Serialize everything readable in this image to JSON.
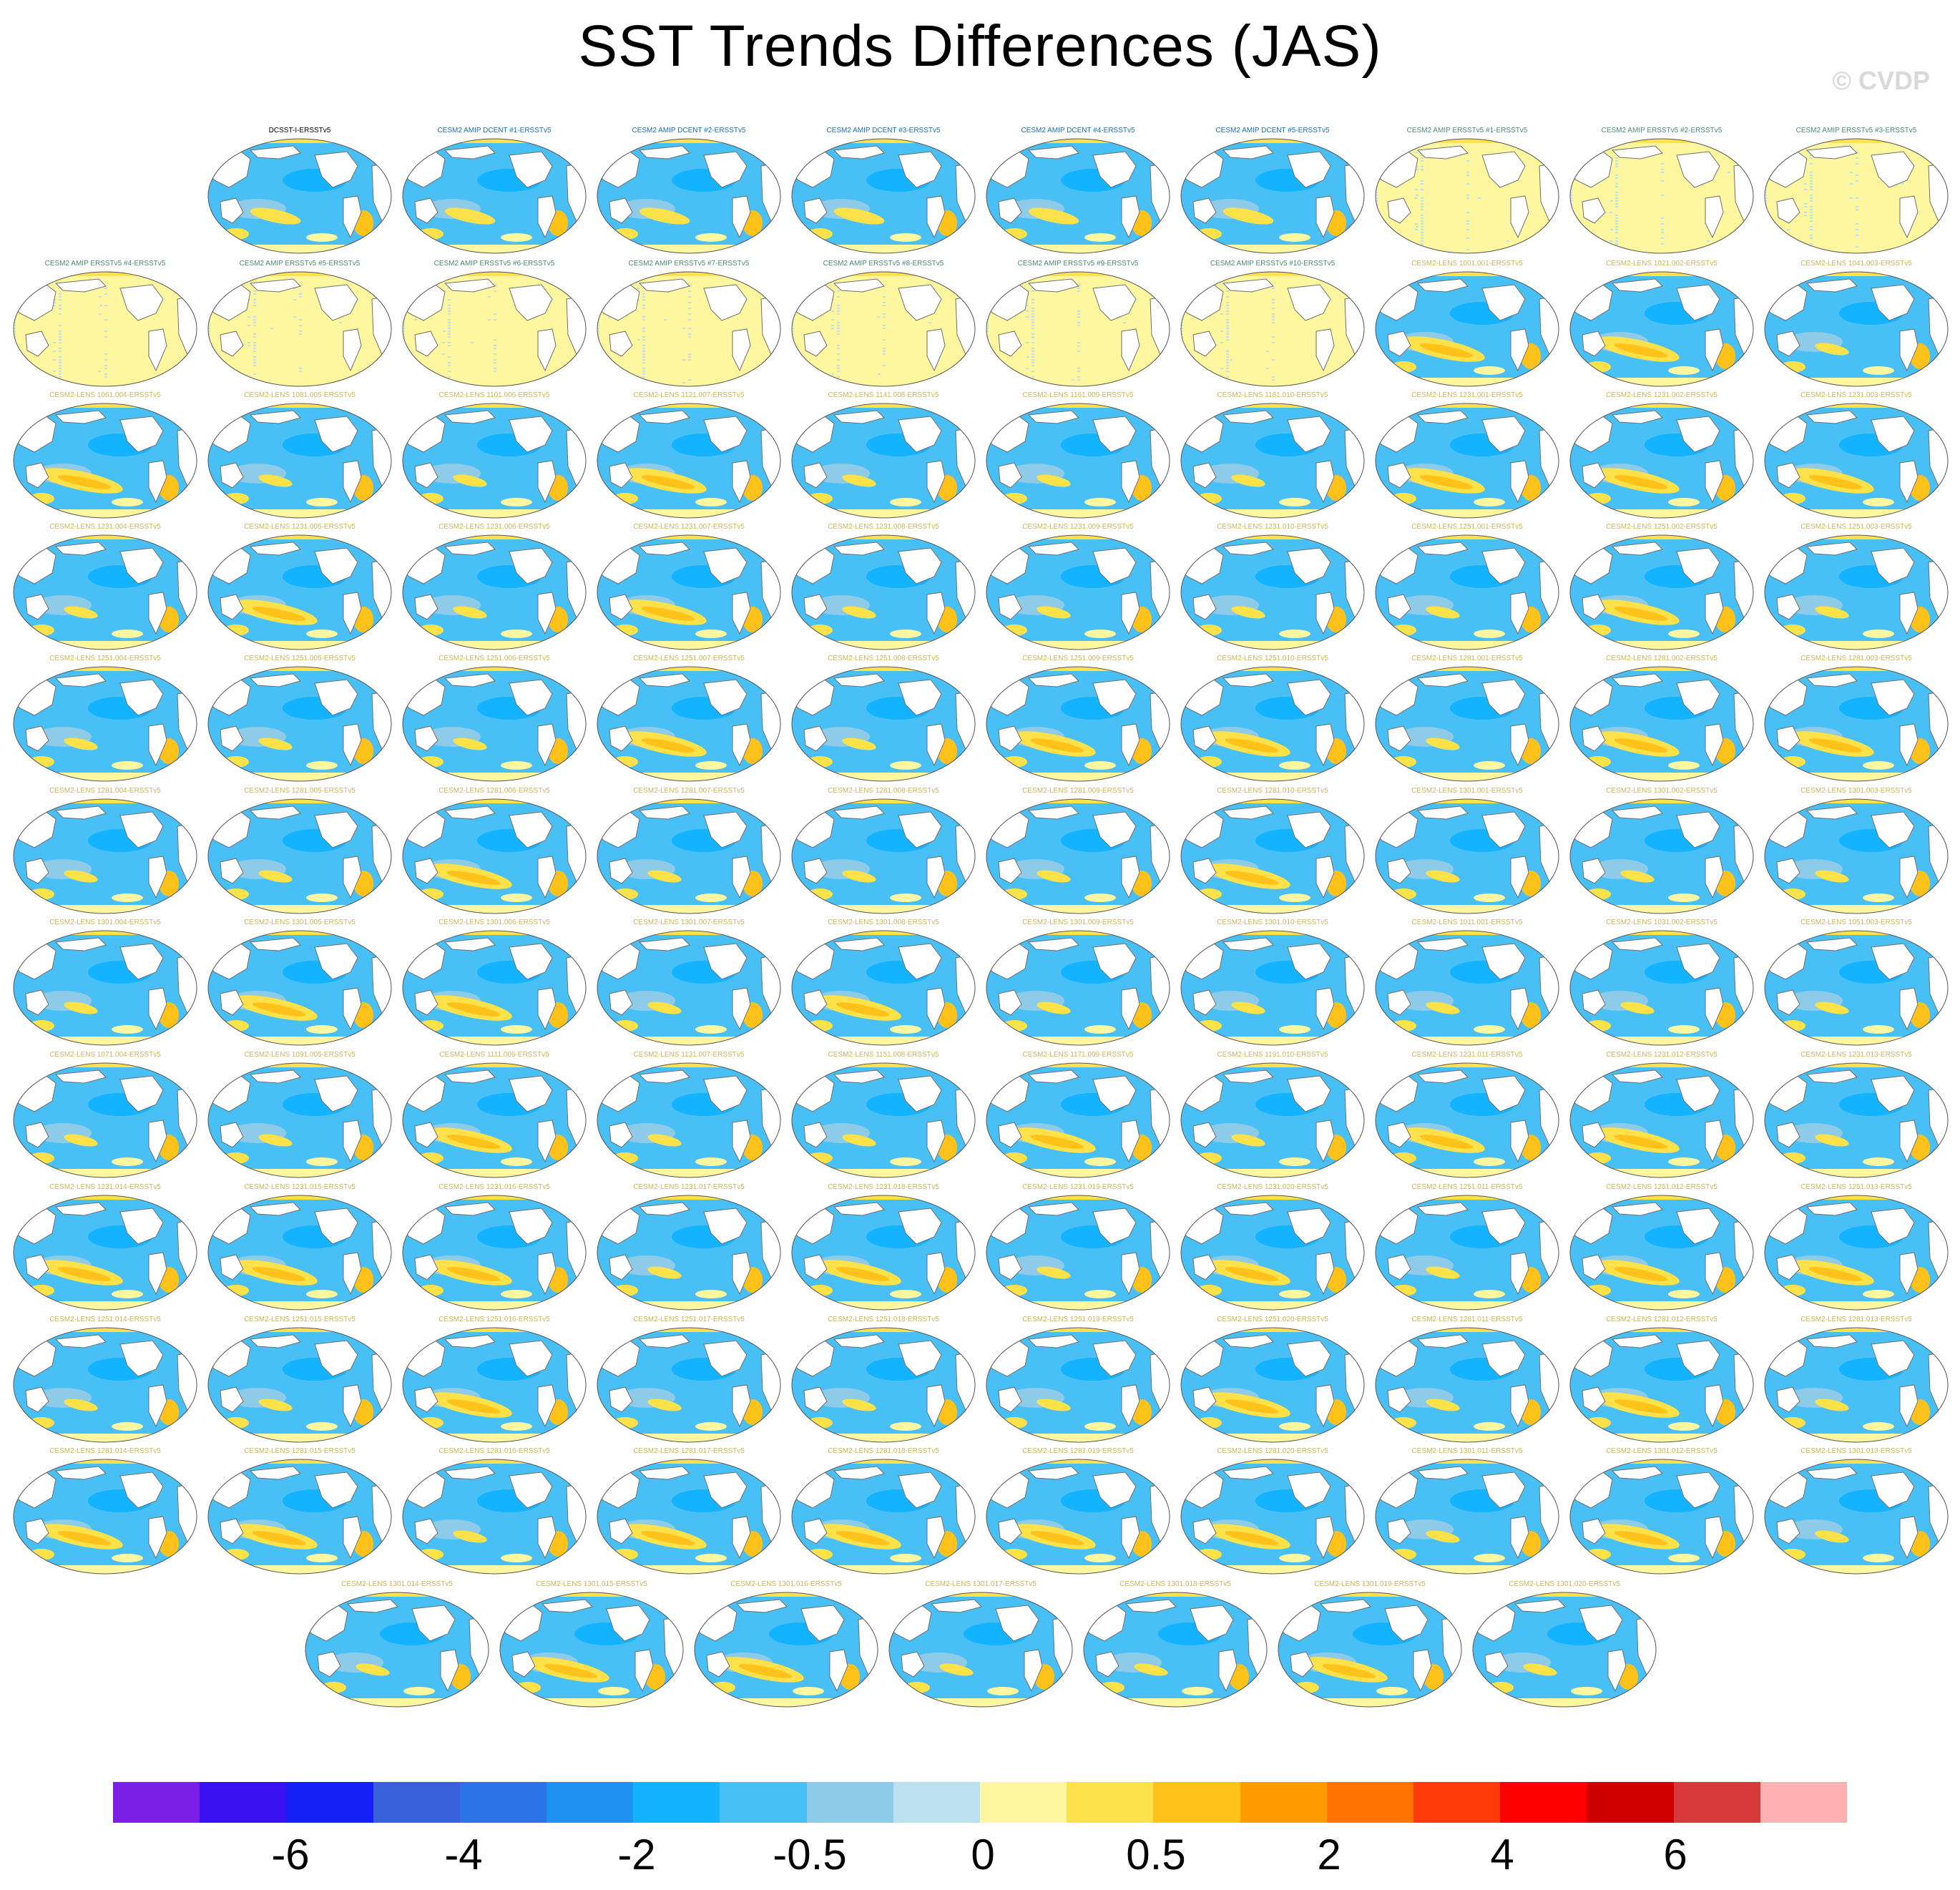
{
  "title": "SST Trends Differences (JAS)",
  "watermark": "© CVDP",
  "panels": [
    {
      "label": "DCSST-I-ERSSTv5",
      "label_color": "#000000",
      "pattern": "obs"
    },
    {
      "label": "CESM2 AMIP DCENT #1-ERSSTv5",
      "label_color": "#1a6fa8",
      "pattern": "obs"
    },
    {
      "label": "CESM2 AMIP DCENT #2-ERSSTv5",
      "label_color": "#1a6fa8",
      "pattern": "obs"
    },
    {
      "label": "CESM2 AMIP DCENT #3-ERSSTv5",
      "label_color": "#1a6fa8",
      "pattern": "obs"
    },
    {
      "label": "CESM2 AMIP DCENT #4-ERSSTv5",
      "label_color": "#1a6fa8",
      "pattern": "obs"
    },
    {
      "label": "CESM2 AMIP DCENT #5-ERSSTv5",
      "label_color": "#1a6fa8",
      "pattern": "obs"
    },
    {
      "label": "CESM2 AMIP ERSSTv5 #1-ERSSTv5",
      "label_color": "#4a8a70",
      "pattern": "noise"
    },
    {
      "label": "CESM2 AMIP ERSSTv5 #2-ERSSTv5",
      "label_color": "#4a8a70",
      "pattern": "noise"
    },
    {
      "label": "CESM2 AMIP ERSSTv5 #3-ERSSTv5",
      "label_color": "#4a8a70",
      "pattern": "noise"
    },
    {
      "label": "CESM2 AMIP ERSSTv5 #4-ERSSTv5",
      "label_color": "#4a8a70",
      "pattern": "noise"
    },
    {
      "label": "CESM2 AMIP ERSSTv5 #5-ERSSTv5",
      "label_color": "#4a8a70",
      "pattern": "noise"
    },
    {
      "label": "CESM2 AMIP ERSSTv5 #6-ERSSTv5",
      "label_color": "#4a8a70",
      "pattern": "noise"
    },
    {
      "label": "CESM2 AMIP ERSSTv5 #7-ERSSTv5",
      "label_color": "#4a8a70",
      "pattern": "noise"
    },
    {
      "label": "CESM2 AMIP ERSSTv5 #8-ERSSTv5",
      "label_color": "#4a8a70",
      "pattern": "noise"
    },
    {
      "label": "CESM2 AMIP ERSSTv5 #9-ERSSTv5",
      "label_color": "#4a8a70",
      "pattern": "noise"
    },
    {
      "label": "CESM2 AMIP ERSSTv5 #10-ERSSTv5",
      "label_color": "#4a8a70",
      "pattern": "noise"
    },
    {
      "label": "CESM2-LENS 1001.001-ERSSTv5",
      "label_color": "#c9b45a",
      "pattern": "warm"
    },
    {
      "label": "CESM2-LENS 1021.002-ERSSTv5",
      "label_color": "#c9b45a",
      "pattern": "warm"
    },
    {
      "label": "CESM2-LENS 1041.003-ERSSTv5",
      "label_color": "#c9b45a",
      "pattern": "cool"
    },
    {
      "label": "CESM2-LENS 1061.004-ERSSTv5",
      "label_color": "#c9b45a",
      "pattern": "warm"
    },
    {
      "label": "CESM2-LENS 1081.005-ERSSTv5",
      "label_color": "#c9b45a",
      "pattern": "cool"
    },
    {
      "label": "CESM2-LENS 1101.006-ERSSTv5",
      "label_color": "#c9b45a",
      "pattern": "cool"
    },
    {
      "label": "CESM2-LENS 1121.007-ERSSTv5",
      "label_color": "#c9b45a",
      "pattern": "warm"
    },
    {
      "label": "CESM2-LENS 1141.008-ERSSTv5",
      "label_color": "#c9b45a",
      "pattern": "cool"
    },
    {
      "label": "CESM2-LENS 1161.009-ERSSTv5",
      "label_color": "#c9b45a",
      "pattern": "cool"
    },
    {
      "label": "CESM2-LENS 1181.010-ERSSTv5",
      "label_color": "#c9b45a",
      "pattern": "cool"
    },
    {
      "label": "CESM2-LENS 1231.001-ERSSTv5",
      "label_color": "#c9b45a",
      "pattern": "warm"
    },
    {
      "label": "CESM2-LENS 1231.002-ERSSTv5",
      "label_color": "#c9b45a",
      "pattern": "warm"
    },
    {
      "label": "CESM2-LENS 1231.003-ERSSTv5",
      "label_color": "#c9b45a",
      "pattern": "warm"
    },
    {
      "label": "CESM2-LENS 1231.004-ERSSTv5",
      "label_color": "#c9b45a",
      "pattern": "cool"
    },
    {
      "label": "CESM2-LENS 1231.005-ERSSTv5",
      "label_color": "#c9b45a",
      "pattern": "warm"
    },
    {
      "label": "CESM2-LENS 1231.006-ERSSTv5",
      "label_color": "#c9b45a",
      "pattern": "cool"
    },
    {
      "label": "CESM2-LENS 1231.007-ERSSTv5",
      "label_color": "#c9b45a",
      "pattern": "warm"
    },
    {
      "label": "CESM2-LENS 1231.008-ERSSTv5",
      "label_color": "#c9b45a",
      "pattern": "cool"
    },
    {
      "label": "CESM2-LENS 1231.009-ERSSTv5",
      "label_color": "#c9b45a",
      "pattern": "cool"
    },
    {
      "label": "CESM2-LENS 1231.010-ERSSTv5",
      "label_color": "#c9b45a",
      "pattern": "cool"
    },
    {
      "label": "CESM2-LENS 1251.001-ERSSTv5",
      "label_color": "#c9b45a",
      "pattern": "cool"
    },
    {
      "label": "CESM2-LENS 1251.002-ERSSTv5",
      "label_color": "#c9b45a",
      "pattern": "warm"
    },
    {
      "label": "CESM2-LENS 1251.003-ERSSTv5",
      "label_color": "#c9b45a",
      "pattern": "cool"
    },
    {
      "label": "CESM2-LENS 1251.004-ERSSTv5",
      "label_color": "#c9b45a",
      "pattern": "cool"
    },
    {
      "label": "CESM2-LENS 1251.005-ERSSTv5",
      "label_color": "#c9b45a",
      "pattern": "cool"
    },
    {
      "label": "CESM2-LENS 1251.006-ERSSTv5",
      "label_color": "#c9b45a",
      "pattern": "cool"
    },
    {
      "label": "CESM2-LENS 1251.007-ERSSTv5",
      "label_color": "#c9b45a",
      "pattern": "warm"
    },
    {
      "label": "CESM2-LENS 1251.008-ERSSTv5",
      "label_color": "#c9b45a",
      "pattern": "cool"
    },
    {
      "label": "CESM2-LENS 1251.009-ERSSTv5",
      "label_color": "#c9b45a",
      "pattern": "warm"
    },
    {
      "label": "CESM2-LENS 1251.010-ERSSTv5",
      "label_color": "#c9b45a",
      "pattern": "warm"
    },
    {
      "label": "CESM2-LENS 1281.001-ERSSTv5",
      "label_color": "#c9b45a",
      "pattern": "cool"
    },
    {
      "label": "CESM2-LENS 1281.002-ERSSTv5",
      "label_color": "#c9b45a",
      "pattern": "warm"
    },
    {
      "label": "CESM2-LENS 1281.003-ERSSTv5",
      "label_color": "#c9b45a",
      "pattern": "warm"
    },
    {
      "label": "CESM2-LENS 1281.004-ERSSTv5",
      "label_color": "#c9b45a",
      "pattern": "cool"
    },
    {
      "label": "CESM2-LENS 1281.005-ERSSTv5",
      "label_color": "#c9b45a",
      "pattern": "cool"
    },
    {
      "label": "CESM2-LENS 1281.006-ERSSTv5",
      "label_color": "#c9b45a",
      "pattern": "warm"
    },
    {
      "label": "CESM2-LENS 1281.007-ERSSTv5",
      "label_color": "#c9b45a",
      "pattern": "cool"
    },
    {
      "label": "CESM2-LENS 1281.008-ERSSTv5",
      "label_color": "#c9b45a",
      "pattern": "cool"
    },
    {
      "label": "CESM2-LENS 1281.009-ERSSTv5",
      "label_color": "#c9b45a",
      "pattern": "cool"
    },
    {
      "label": "CESM2-LENS 1281.010-ERSSTv5",
      "label_color": "#c9b45a",
      "pattern": "warm"
    },
    {
      "label": "CESM2-LENS 1301.001-ERSSTv5",
      "label_color": "#c9b45a",
      "pattern": "cool"
    },
    {
      "label": "CESM2-LENS 1301.002-ERSSTv5",
      "label_color": "#c9b45a",
      "pattern": "cool"
    },
    {
      "label": "CESM2-LENS 1301.003-ERSSTv5",
      "label_color": "#c9b45a",
      "pattern": "cool"
    },
    {
      "label": "CESM2-LENS 1301.004-ERSSTv5",
      "label_color": "#c9b45a",
      "pattern": "cool"
    },
    {
      "label": "CESM2-LENS 1301.005-ERSSTv5",
      "label_color": "#c9b45a",
      "pattern": "warm"
    },
    {
      "label": "CESM2-LENS 1301.006-ERSSTv5",
      "label_color": "#c9b45a",
      "pattern": "warm"
    },
    {
      "label": "CESM2-LENS 1301.007-ERSSTv5",
      "label_color": "#c9b45a",
      "pattern": "cool"
    },
    {
      "label": "CESM2-LENS 1301.008-ERSSTv5",
      "label_color": "#c9b45a",
      "pattern": "warm"
    },
    {
      "label": "CESM2-LENS 1301.009-ERSSTv5",
      "label_color": "#c9b45a",
      "pattern": "cool"
    },
    {
      "label": "CESM2-LENS 1301.010-ERSSTv5",
      "label_color": "#c9b45a",
      "pattern": "cool"
    },
    {
      "label": "CESM2-LENS 1011.001-ERSSTv5",
      "label_color": "#c9b45a",
      "pattern": "cool"
    },
    {
      "label": "CESM2-LENS 1031.002-ERSSTv5",
      "label_color": "#c9b45a",
      "pattern": "cool"
    },
    {
      "label": "CESM2-LENS 1051.003-ERSSTv5",
      "label_color": "#c9b45a",
      "pattern": "cool"
    },
    {
      "label": "CESM2-LENS 1071.004-ERSSTv5",
      "label_color": "#c9b45a",
      "pattern": "cool"
    },
    {
      "label": "CESM2-LENS 1091.005-ERSSTv5",
      "label_color": "#c9b45a",
      "pattern": "cool"
    },
    {
      "label": "CESM2-LENS 1111.006-ERSSTv5",
      "label_color": "#c9b45a",
      "pattern": "warm"
    },
    {
      "label": "CESM2-LENS 1131.007-ERSSTv5",
      "label_color": "#c9b45a",
      "pattern": "cool"
    },
    {
      "label": "CESM2-LENS 1151.008-ERSSTv5",
      "label_color": "#c9b45a",
      "pattern": "cool"
    },
    {
      "label": "CESM2-LENS 1171.009-ERSSTv5",
      "label_color": "#c9b45a",
      "pattern": "warm"
    },
    {
      "label": "CESM2-LENS 1191.010-ERSSTv5",
      "label_color": "#c9b45a",
      "pattern": "cool"
    },
    {
      "label": "CESM2-LENS 1231.011-ERSSTv5",
      "label_color": "#c9b45a",
      "pattern": "warm"
    },
    {
      "label": "CESM2-LENS 1231.012-ERSSTv5",
      "label_color": "#c9b45a",
      "pattern": "warm"
    },
    {
      "label": "CESM2-LENS 1231.013-ERSSTv5",
      "label_color": "#c9b45a",
      "pattern": "cool"
    },
    {
      "label": "CESM2-LENS 1231.014-ERSSTv5",
      "label_color": "#c9b45a",
      "pattern": "warm"
    },
    {
      "label": "CESM2-LENS 1231.015-ERSSTv5",
      "label_color": "#c9b45a",
      "pattern": "warm"
    },
    {
      "label": "CESM2-LENS 1231.016-ERSSTv5",
      "label_color": "#c9b45a",
      "pattern": "warm"
    },
    {
      "label": "CESM2-LENS 1231.017-ERSSTv5",
      "label_color": "#c9b45a",
      "pattern": "cool"
    },
    {
      "label": "CESM2-LENS 1231.018-ERSSTv5",
      "label_color": "#c9b45a",
      "pattern": "warm"
    },
    {
      "label": "CESM2-LENS 1231.019-ERSSTv5",
      "label_color": "#c9b45a",
      "pattern": "cool"
    },
    {
      "label": "CESM2-LENS 1231.020-ERSSTv5",
      "label_color": "#c9b45a",
      "pattern": "warm"
    },
    {
      "label": "CESM2-LENS 1251.011-ERSSTv5",
      "label_color": "#c9b45a",
      "pattern": "cool"
    },
    {
      "label": "CESM2-LENS 1251.012-ERSSTv5",
      "label_color": "#c9b45a",
      "pattern": "warm"
    },
    {
      "label": "CESM2-LENS 1251.013-ERSSTv5",
      "label_color": "#c9b45a",
      "pattern": "warm"
    },
    {
      "label": "CESM2-LENS 1251.014-ERSSTv5",
      "label_color": "#c9b45a",
      "pattern": "cool"
    },
    {
      "label": "CESM2-LENS 1251.015-ERSSTv5",
      "label_color": "#c9b45a",
      "pattern": "cool"
    },
    {
      "label": "CESM2-LENS 1251.016-ERSSTv5",
      "label_color": "#c9b45a",
      "pattern": "warm"
    },
    {
      "label": "CESM2-LENS 1251.017-ERSSTv5",
      "label_color": "#c9b45a",
      "pattern": "cool"
    },
    {
      "label": "CESM2-LENS 1251.018-ERSSTv5",
      "label_color": "#c9b45a",
      "pattern": "cool"
    },
    {
      "label": "CESM2-LENS 1251.019-ERSSTv5",
      "label_color": "#c9b45a",
      "pattern": "cool"
    },
    {
      "label": "CESM2-LENS 1251.020-ERSSTv5",
      "label_color": "#c9b45a",
      "pattern": "warm"
    },
    {
      "label": "CESM2-LENS 1281.011-ERSSTv5",
      "label_color": "#c9b45a",
      "pattern": "cool"
    },
    {
      "label": "CESM2-LENS 1281.012-ERSSTv5",
      "label_color": "#c9b45a",
      "pattern": "warm"
    },
    {
      "label": "CESM2-LENS 1281.013-ERSSTv5",
      "label_color": "#c9b45a",
      "pattern": "cool"
    },
    {
      "label": "CESM2-LENS 1281.014-ERSSTv5",
      "label_color": "#c9b45a",
      "pattern": "warm"
    },
    {
      "label": "CESM2-LENS 1281.015-ERSSTv5",
      "label_color": "#c9b45a",
      "pattern": "warm"
    },
    {
      "label": "CESM2-LENS 1281.016-ERSSTv5",
      "label_color": "#c9b45a",
      "pattern": "cool"
    },
    {
      "label": "CESM2-LENS 1281.017-ERSSTv5",
      "label_color": "#c9b45a",
      "pattern": "warm"
    },
    {
      "label": "CESM2-LENS 1281.018-ERSSTv5",
      "label_color": "#c9b45a",
      "pattern": "warm"
    },
    {
      "label": "CESM2-LENS 1281.019-ERSSTv5",
      "label_color": "#c9b45a",
      "pattern": "warm"
    },
    {
      "label": "CESM2-LENS 1281.020-ERSSTv5",
      "label_color": "#c9b45a",
      "pattern": "warm"
    },
    {
      "label": "CESM2-LENS 1301.011-ERSSTv5",
      "label_color": "#c9b45a",
      "pattern": "cool"
    },
    {
      "label": "CESM2-LENS 1301.012-ERSSTv5",
      "label_color": "#c9b45a",
      "pattern": "warm"
    },
    {
      "label": "CESM2-LENS 1301.013-ERSSTv5",
      "label_color": "#c9b45a",
      "pattern": "cool"
    },
    {
      "label": "CESM2-LENS 1301.014-ERSSTv5",
      "label_color": "#c9b45a",
      "pattern": "cool"
    },
    {
      "label": "CESM2-LENS 1301.015-ERSSTv5",
      "label_color": "#c9b45a",
      "pattern": "warm"
    },
    {
      "label": "CESM2-LENS 1301.016-ERSSTv5",
      "label_color": "#c9b45a",
      "pattern": "warm"
    },
    {
      "label": "CESM2-LENS 1301.017-ERSSTv5",
      "label_color": "#c9b45a",
      "pattern": "cool"
    },
    {
      "label": "CESM2-LENS 1301.018-ERSSTv5",
      "label_color": "#c9b45a",
      "pattern": "cool"
    },
    {
      "label": "CESM2-LENS 1301.019-ERSSTv5",
      "label_color": "#c9b45a",
      "pattern": "warm"
    },
    {
      "label": "CESM2-LENS 1301.020-ERSSTv5",
      "label_color": "#c9b45a",
      "pattern": "cool"
    }
  ],
  "colorbar": {
    "colors": [
      "#7b1fe6",
      "#3a12f2",
      "#1520f5",
      "#3a5fdc",
      "#2b74e8",
      "#2090f2",
      "#13b3ff",
      "#48c0f6",
      "#8ecbe8",
      "#bde0f0",
      "#fff7a0",
      "#ffe14a",
      "#ffc21a",
      "#ff9a00",
      "#ff7400",
      "#ff3a0a",
      "#ff0000",
      "#d00000",
      "#d63a3a",
      "#ffb0b0"
    ],
    "tick_labels": [
      "-6",
      "-4",
      "-2",
      "-0.5",
      "0",
      "0.5",
      "2",
      "4",
      "6"
    ]
  }
}
